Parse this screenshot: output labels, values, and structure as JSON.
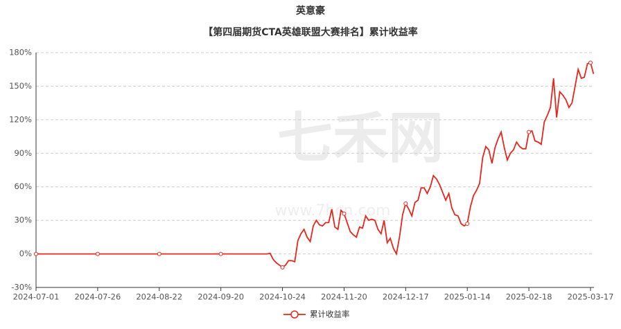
{
  "chart_data": {
    "type": "line",
    "title": "英意豪",
    "subtitle": "【第四届期货CTA英雄联盟大赛排名】累计收益率",
    "watermark": "七禾网",
    "watermark_url": "www.7hcn.com",
    "categories": [
      "2024-07-01",
      null,
      null,
      null,
      null,
      null,
      null,
      null,
      null,
      null,
      null,
      null,
      null,
      null,
      null,
      null,
      null,
      null,
      null,
      null,
      "2024-07-26",
      null,
      null,
      null,
      null,
      null,
      null,
      null,
      null,
      null,
      null,
      null,
      null,
      null,
      null,
      null,
      null,
      null,
      null,
      null,
      "2024-08-22",
      null,
      null,
      null,
      null,
      null,
      null,
      null,
      null,
      null,
      null,
      null,
      null,
      null,
      null,
      null,
      null,
      null,
      null,
      null,
      "2024-09-20",
      null,
      null,
      null,
      null,
      null,
      null,
      null,
      null,
      null,
      null,
      null,
      null,
      null,
      null,
      null,
      null,
      null,
      null,
      null,
      "2024-10-24",
      null,
      null,
      null,
      null,
      null,
      null,
      null,
      null,
      null,
      null,
      null,
      null,
      null,
      null,
      null,
      null,
      null,
      null,
      null,
      "2024-11-20",
      null,
      null,
      null,
      null,
      null,
      null,
      null,
      null,
      null,
      null,
      null,
      null,
      null,
      null,
      null,
      null,
      null,
      null,
      null,
      "2024-12-17",
      null,
      null,
      null,
      null,
      null,
      null,
      null,
      null,
      null,
      null,
      null,
      null,
      null,
      null,
      null,
      null,
      null,
      null,
      null,
      "2025-01-14",
      null,
      null,
      null,
      null,
      null,
      null,
      null,
      null,
      null,
      null,
      null,
      null,
      null,
      null,
      null,
      null,
      null,
      null,
      null,
      "2025-02-18",
      null,
      null,
      null,
      null,
      null,
      null,
      null,
      null,
      null,
      null,
      null,
      null,
      null,
      null,
      null,
      null,
      null,
      null,
      null,
      "2025-03-17",
      null
    ],
    "series": [
      {
        "name": "累计收益率",
        "color": "#e8251b",
        "values": [
          0,
          0,
          0,
          0,
          0,
          0,
          0,
          0,
          0,
          0,
          0,
          0,
          0,
          0,
          0,
          0,
          0,
          0,
          0,
          0,
          0,
          0,
          0,
          0,
          0,
          0,
          0,
          0,
          0,
          0,
          0,
          0,
          0,
          0,
          0,
          0,
          0,
          0,
          0,
          0,
          0,
          0,
          0,
          0,
          0,
          0,
          0,
          0,
          0,
          0,
          0,
          0,
          0,
          0,
          0,
          0,
          0,
          0,
          0,
          0,
          0,
          0,
          0,
          0,
          0,
          0,
          0,
          0,
          0,
          0,
          0,
          0,
          0,
          0,
          0,
          0,
          0.5,
          -5,
          -8,
          -10,
          -12,
          -10,
          -6,
          -6,
          -7,
          12,
          18,
          22,
          15,
          11,
          25,
          30,
          26,
          25,
          28,
          28,
          40,
          24,
          22,
          39,
          36,
          28,
          20,
          17,
          15,
          24,
          23,
          34,
          30,
          31,
          30,
          22,
          18,
          30,
          10,
          14,
          5,
          0,
          15,
          35,
          45,
          40,
          34,
          46,
          48,
          59,
          59,
          54,
          60,
          70,
          67,
          62,
          55,
          48,
          54,
          41,
          35,
          34,
          27,
          25,
          27,
          42,
          52,
          57,
          63,
          86,
          96,
          93,
          81,
          95,
          103,
          109,
          95,
          84,
          90,
          93,
          100,
          96,
          94,
          94,
          109,
          110,
          101,
          100,
          98,
          118,
          124,
          131,
          157,
          122,
          145,
          142,
          138,
          131,
          135,
          150,
          165,
          157,
          158,
          170,
          171,
          161
        ]
      }
    ],
    "ylim": [
      -30,
      180
    ],
    "yticks": [
      {
        "value": -30,
        "label": "-30%"
      },
      {
        "value": 0,
        "label": "0%"
      },
      {
        "value": 30,
        "label": "30%"
      },
      {
        "value": 60,
        "label": "60%"
      },
      {
        "value": 90,
        "label": "90%"
      },
      {
        "value": 120,
        "label": "120%"
      },
      {
        "value": 150,
        "label": "150%"
      },
      {
        "value": 180,
        "label": "180%"
      }
    ],
    "grid": true,
    "legend": "bottom"
  }
}
